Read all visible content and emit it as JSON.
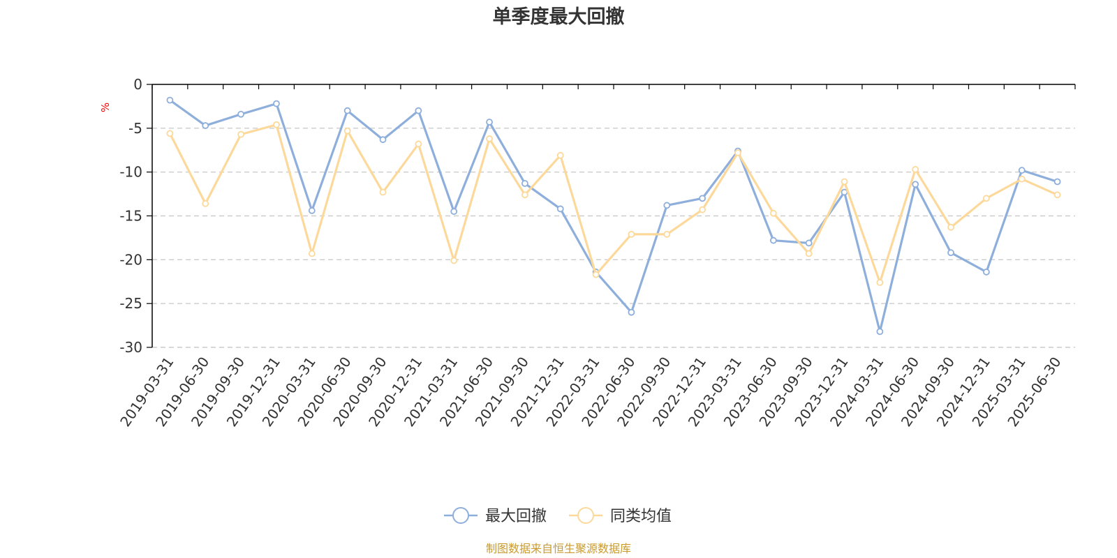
{
  "chart_data": {
    "type": "line",
    "title": "单季度最大回撤",
    "ylabel": "%",
    "xlabel": "",
    "ylim": [
      -30,
      0
    ],
    "yticks": [
      0,
      -5,
      -10,
      -15,
      -20,
      -25,
      -30
    ],
    "grid": true,
    "legend_position": "bottom-center",
    "categories": [
      "2019-03-31",
      "2019-06-30",
      "2019-09-30",
      "2019-12-31",
      "2020-03-31",
      "2020-06-30",
      "2020-09-30",
      "2020-12-31",
      "2021-03-31",
      "2021-06-30",
      "2021-09-30",
      "2021-12-31",
      "2022-03-31",
      "2022-06-30",
      "2022-09-30",
      "2022-12-31",
      "2023-03-31",
      "2023-06-30",
      "2023-09-30",
      "2023-12-31",
      "2024-03-31",
      "2024-06-30",
      "2024-09-30",
      "2024-12-31",
      "2025-03-31",
      "2025-06-30"
    ],
    "series": [
      {
        "name": "最大回撤",
        "color": "#8eaedb",
        "values": [
          -1.8,
          -4.7,
          -3.4,
          -2.2,
          -14.4,
          -3.0,
          -6.3,
          -3.0,
          -14.5,
          -4.3,
          -11.3,
          -14.2,
          -21.4,
          -26.0,
          -13.8,
          -13.0,
          -7.6,
          -17.8,
          -18.1,
          -12.3,
          -28.2,
          -11.4,
          -19.2,
          -21.4,
          -9.8,
          -11.1
        ]
      },
      {
        "name": "同类均值",
        "color": "#fcd99a",
        "values": [
          -5.6,
          -13.6,
          -5.7,
          -4.6,
          -19.3,
          -5.3,
          -12.3,
          -6.8,
          -20.1,
          -6.2,
          -12.6,
          -8.1,
          -21.7,
          -17.1,
          -17.1,
          -14.3,
          -7.8,
          -14.7,
          -19.3,
          -11.1,
          -22.6,
          -9.7,
          -16.3,
          -13.0,
          -10.8,
          -12.6
        ]
      }
    ],
    "source": "制图数据来自恒生聚源数据库"
  },
  "colors": {
    "title": "#333333",
    "axis": "#000000",
    "grid": "#cccccc",
    "unit": "#ff0000",
    "source": "#c99a2e"
  }
}
